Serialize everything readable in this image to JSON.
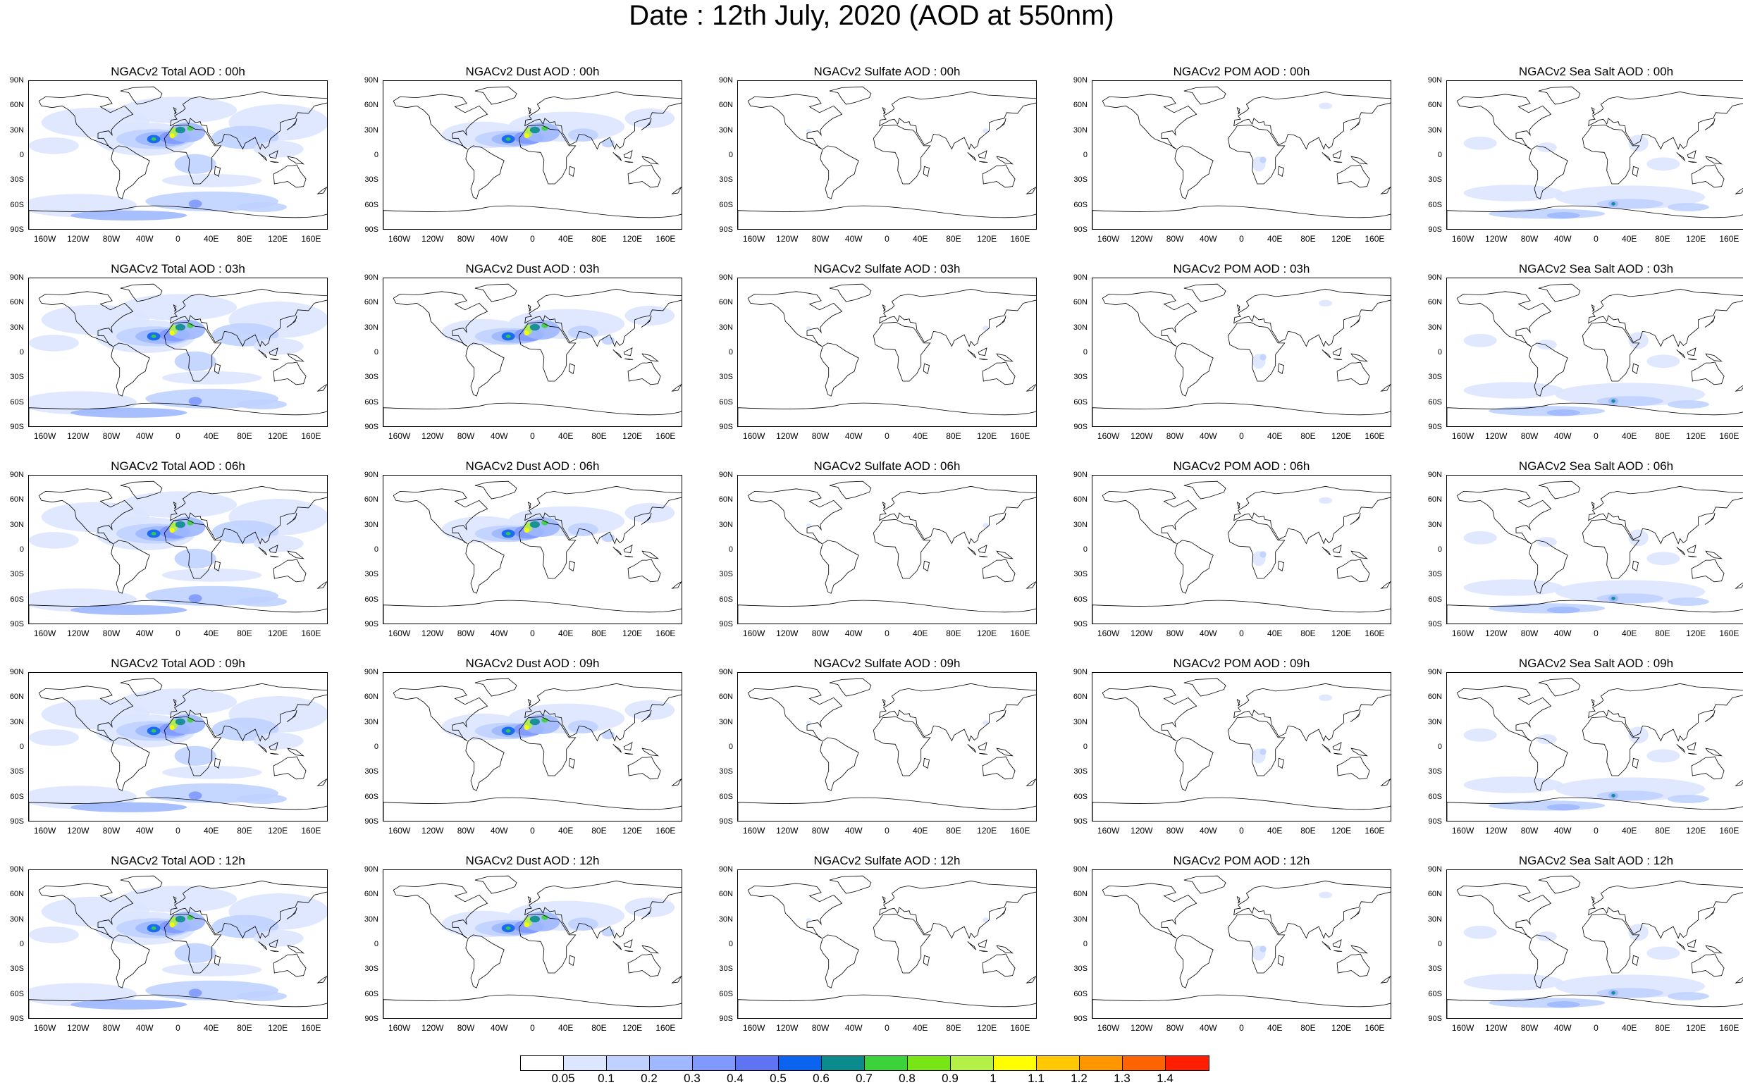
{
  "title": "Date : 12th July, 2020 (AOD at 550nm)",
  "lat_labels": [
    "90N",
    "60N",
    "30N",
    "0",
    "30S",
    "60S",
    "90S"
  ],
  "lon_labels": [
    "160W",
    "120W",
    "80W",
    "40W",
    "0",
    "40E",
    "80E",
    "120E",
    "160E"
  ],
  "colorbar": {
    "labels": [
      "0.05",
      "0.1",
      "0.2",
      "0.3",
      "0.4",
      "0.5",
      "0.6",
      "0.7",
      "0.8",
      "0.9",
      "1",
      "1.1",
      "1.2",
      "1.3",
      "1.4"
    ],
    "colors": [
      "#ffffff",
      "#dce6ff",
      "#bfd1ff",
      "#9fb8ff",
      "#7f99ff",
      "#5f74f2",
      "#0a64f0",
      "#0a8c8c",
      "#3cd23c",
      "#78e614",
      "#b4f046",
      "#ffff00",
      "#ffc800",
      "#ff9600",
      "#ff6400",
      "#ff1e00"
    ]
  },
  "panels": [
    {
      "title": "NGACv2 Total AOD : 00h",
      "type": "total"
    },
    {
      "title": "NGACv2 Dust AOD : 00h",
      "type": "dust"
    },
    {
      "title": "NGACv2 Sulfate AOD : 00h",
      "type": "sulfate"
    },
    {
      "title": "NGACv2 POM AOD : 00h",
      "type": "pom"
    },
    {
      "title": "NGACv2 Sea Salt AOD : 00h",
      "type": "seasalt"
    },
    {
      "title": "NGACv2 Total AOD : 03h",
      "type": "total"
    },
    {
      "title": "NGACv2 Dust AOD : 03h",
      "type": "dust"
    },
    {
      "title": "NGACv2 Sulfate AOD : 03h",
      "type": "sulfate"
    },
    {
      "title": "NGACv2 POM AOD : 03h",
      "type": "pom"
    },
    {
      "title": "NGACv2 Sea Salt AOD : 03h",
      "type": "seasalt"
    },
    {
      "title": "NGACv2 Total AOD : 06h",
      "type": "total"
    },
    {
      "title": "NGACv2 Dust AOD : 06h",
      "type": "dust"
    },
    {
      "title": "NGACv2 Sulfate AOD : 06h",
      "type": "sulfate"
    },
    {
      "title": "NGACv2 POM AOD : 06h",
      "type": "pom"
    },
    {
      "title": "NGACv2 Sea Salt AOD : 06h",
      "type": "seasalt"
    },
    {
      "title": "NGACv2 Total AOD : 09h",
      "type": "total"
    },
    {
      "title": "NGACv2 Dust AOD : 09h",
      "type": "dust"
    },
    {
      "title": "NGACv2 Sulfate AOD : 09h",
      "type": "sulfate"
    },
    {
      "title": "NGACv2 POM AOD : 09h",
      "type": "pom"
    },
    {
      "title": "NGACv2 Sea Salt  AOD : 09h",
      "type": "seasalt"
    },
    {
      "title": "NGACv2 Total AOD :  12h",
      "type": "total"
    },
    {
      "title": "NGACv2 Dust AOD : 12h",
      "type": "dust"
    },
    {
      "title": "NGACv2 Sulfate AOD : 12h",
      "type": "sulfate"
    },
    {
      "title": "NGACv2 POM  AOD : 12h",
      "type": "pom"
    },
    {
      "title": "NGACv2 Sea Salt AOD : 12h",
      "type": "seasalt"
    }
  ]
}
